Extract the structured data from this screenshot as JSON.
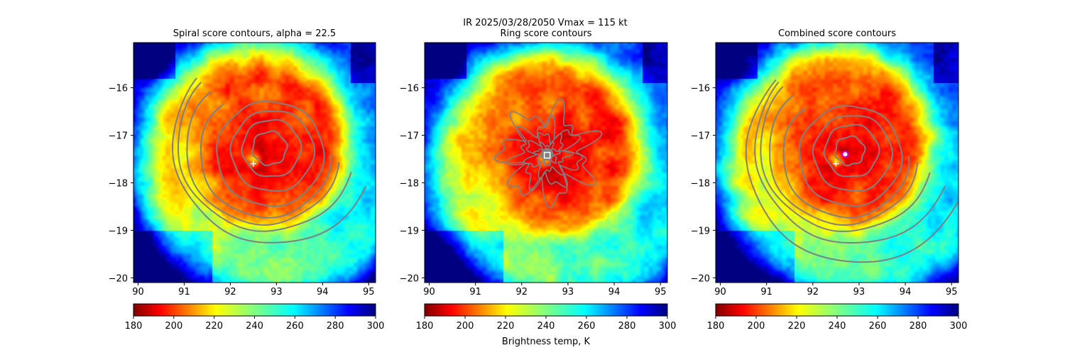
{
  "figure": {
    "suptitle_line1": "IR  2025/03/28/2050    Vmax = 115 kt",
    "colorbar_label": "Brightness temp, K"
  },
  "chart_data": [
    {
      "type": "heatmap",
      "title": "Spiral score contours, alpha = 22.5",
      "xlim": [
        89.9,
        95.15
      ],
      "ylim": [
        -20.1,
        -15.05
      ],
      "xticks": [
        90,
        91,
        92,
        93,
        94,
        95
      ],
      "yticks": [
        -16,
        -17,
        -18,
        -19,
        -20
      ],
      "xtick_labels": [
        "90",
        "91",
        "92",
        "93",
        "94",
        "95"
      ],
      "ytick_labels": [
        "−16",
        "−17",
        "−18",
        "−19",
        "−20"
      ],
      "field_center": [
        92.7,
        -17.35
      ],
      "contour_center": [
        92.85,
        -17.3
      ],
      "contour_type": "spiral",
      "contour_radii": [
        0.35,
        0.6,
        0.85,
        1.1,
        1.35,
        1.6,
        1.85,
        2.1
      ],
      "markers": [
        {
          "symbol": "+",
          "x": 92.5,
          "y": -17.6,
          "color": "#ffffff"
        }
      ]
    },
    {
      "type": "heatmap",
      "title": "Ring score contours",
      "xlim": [
        89.9,
        95.15
      ],
      "ylim": [
        -20.1,
        -15.05
      ],
      "xticks": [
        90,
        91,
        92,
        93,
        94,
        95
      ],
      "yticks": [
        -16,
        -17,
        -18,
        -19,
        -20
      ],
      "xtick_labels": [
        "90",
        "91",
        "92",
        "93",
        "94",
        "95"
      ],
      "ytick_labels": [
        "−16",
        "−17",
        "−18",
        "−19",
        "−20"
      ],
      "field_center": [
        92.75,
        -17.45
      ],
      "contour_center": [
        92.55,
        -17.4
      ],
      "contour_type": "ring",
      "contour_radii": [
        0.2,
        0.38,
        0.6,
        0.85
      ],
      "markers": [
        {
          "symbol": "square",
          "x": 92.55,
          "y": -17.42,
          "color": "#ffffff"
        }
      ]
    },
    {
      "type": "heatmap",
      "title": "Combined score contours",
      "xlim": [
        89.9,
        95.15
      ],
      "ylim": [
        -20.1,
        -15.05
      ],
      "xticks": [
        90,
        91,
        92,
        93,
        94,
        95
      ],
      "yticks": [
        -16,
        -17,
        -18,
        -19,
        -20
      ],
      "xtick_labels": [
        "90",
        "91",
        "92",
        "93",
        "94",
        "95"
      ],
      "ytick_labels": [
        "−16",
        "−17",
        "−18",
        "−19",
        "−20"
      ],
      "field_center": [
        92.7,
        -17.35
      ],
      "contour_center": [
        92.8,
        -17.35
      ],
      "contour_type": "spiral",
      "contour_radii": [
        0.3,
        0.55,
        0.8,
        1.05,
        1.3,
        1.55,
        1.8,
        2.05,
        2.3
      ],
      "markers": [
        {
          "symbol": "+",
          "x": 92.5,
          "y": -17.6,
          "color": "#ffffff"
        },
        {
          "symbol": "circle",
          "x": 92.7,
          "y": -17.4,
          "color": "#cc00cc"
        }
      ]
    }
  ],
  "colorbar": {
    "cmap": "jet_r",
    "vmin": 180,
    "vmax": 300,
    "ticks": [
      180,
      200,
      220,
      240,
      260,
      280,
      300
    ],
    "tick_labels": [
      "180",
      "200",
      "220",
      "240",
      "260",
      "280",
      "300"
    ]
  },
  "colors": {
    "contour": "#808080",
    "axes": "#000000",
    "background": "#ffffff"
  }
}
